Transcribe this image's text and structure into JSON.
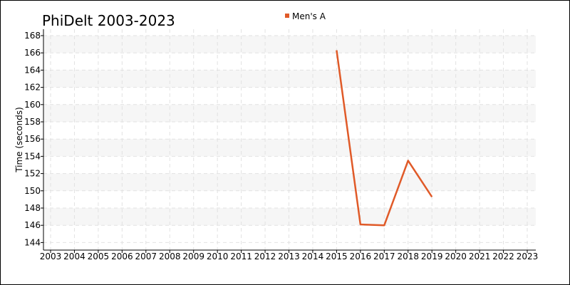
{
  "chart_data": {
    "type": "line",
    "title": "PhiDelt 2003-2023",
    "xlabel": "",
    "ylabel": "Time (seconds)",
    "legend_position": "top",
    "grid": true,
    "xlim": [
      2003,
      2023
    ],
    "ylim": [
      143.1,
      168.75
    ],
    "x_ticks": [
      2003,
      2004,
      2005,
      2006,
      2007,
      2008,
      2009,
      2010,
      2011,
      2012,
      2013,
      2014,
      2015,
      2016,
      2017,
      2018,
      2019,
      2020,
      2021,
      2022,
      2023
    ],
    "y_ticks": [
      144,
      146,
      148,
      150,
      152,
      154,
      156,
      158,
      160,
      162,
      164,
      166,
      168
    ],
    "series": [
      {
        "name": "Men's A",
        "color": "#e05a28",
        "x": [
          2015,
          2016,
          2017,
          2018,
          2019
        ],
        "y": [
          166.3,
          146.1,
          146.0,
          153.5,
          149.3
        ]
      }
    ]
  }
}
